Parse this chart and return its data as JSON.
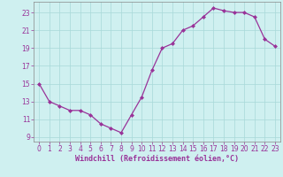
{
  "x": [
    0,
    1,
    2,
    3,
    4,
    5,
    6,
    7,
    8,
    9,
    10,
    11,
    12,
    13,
    14,
    15,
    16,
    17,
    18,
    19,
    20,
    21,
    22,
    23
  ],
  "y": [
    15.0,
    13.0,
    12.5,
    12.0,
    12.0,
    11.5,
    10.5,
    10.0,
    9.5,
    11.5,
    13.5,
    16.5,
    19.0,
    19.5,
    21.0,
    21.5,
    22.5,
    23.5,
    23.2,
    23.0,
    23.0,
    22.5,
    20.0,
    19.2
  ],
  "line_color": "#993399",
  "marker": "D",
  "marker_size": 2.0,
  "bg_color": "#cff0f0",
  "grid_color": "#a8d8d8",
  "xlabel": "Windchill (Refroidissement éolien,°C)",
  "xlabel_fontsize": 6.0,
  "xlim": [
    -0.5,
    23.5
  ],
  "ylim": [
    8.5,
    24.2
  ],
  "yticks": [
    9,
    11,
    13,
    15,
    17,
    19,
    21,
    23
  ],
  "xtick_labels": [
    "0",
    "1",
    "2",
    "3",
    "4",
    "5",
    "6",
    "7",
    "8",
    "9",
    "10",
    "11",
    "12",
    "13",
    "14",
    "15",
    "16",
    "17",
    "18",
    "19",
    "20",
    "21",
    "22",
    "23"
  ],
  "tick_fontsize": 5.5,
  "tick_color": "#993399",
  "spine_color": "#888888",
  "linewidth": 0.9
}
